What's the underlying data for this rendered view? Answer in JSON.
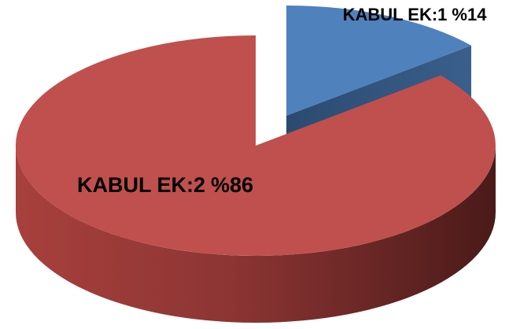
{
  "chart_data": {
    "type": "pie3d",
    "categories": [
      "KABUL EK:1",
      "KABUL EK:2"
    ],
    "values": [
      14,
      86
    ],
    "value_labels": [
      "%14",
      "%86"
    ],
    "colors": [
      "#4f81bd",
      "#c0504d"
    ],
    "exploded": [
      true,
      false
    ]
  }
}
